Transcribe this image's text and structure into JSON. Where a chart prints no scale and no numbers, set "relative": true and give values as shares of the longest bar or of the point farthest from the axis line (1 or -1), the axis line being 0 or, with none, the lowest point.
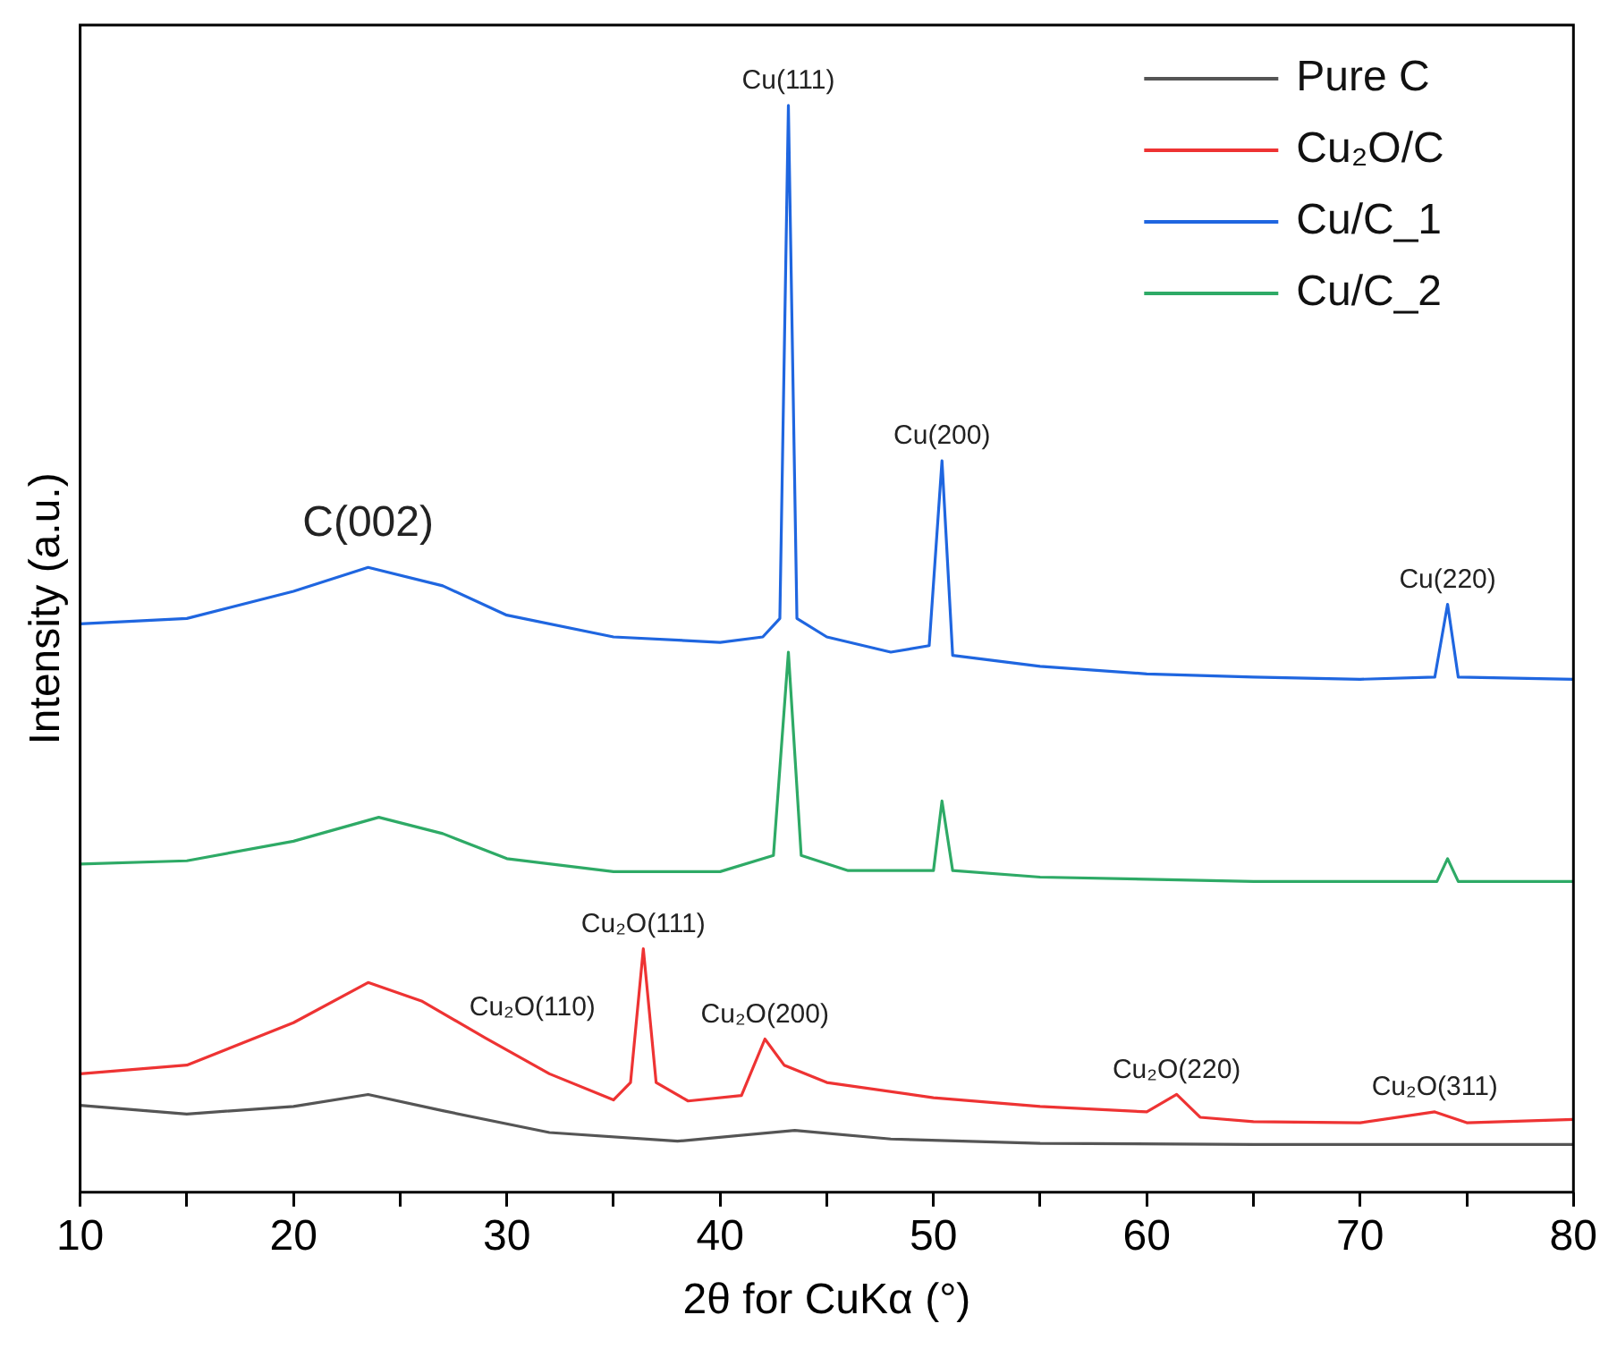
{
  "chart_data": {
    "type": "line",
    "relative": true,
    "xlabel": "2θ for CuKα (°)",
    "ylabel": "Intensity (a.u.)",
    "xlim": [
      10,
      80
    ],
    "xticks": [
      10,
      {
        "value": 15,
        "label": null
      },
      20,
      {
        "value": 25,
        "label": null
      },
      30,
      {
        "value": 35,
        "label": null
      },
      40,
      {
        "value": 45,
        "label": null
      },
      50,
      {
        "value": 55,
        "label": null
      },
      60,
      {
        "value": 65,
        "label": null
      },
      70,
      {
        "value": 75,
        "label": null
      },
      80
    ],
    "grid": false,
    "legend": "top right",
    "marker": "none",
    "line_style": "solid",
    "series": [
      {
        "name": "Pure C",
        "color": "#555555",
        "x": [
          10,
          15,
          20,
          23.5,
          27,
          32,
          38,
          43.5,
          48,
          55,
          65,
          80
        ],
        "values": [
          0.08,
          0.072,
          0.079,
          0.09,
          0.075,
          0.055,
          0.047,
          0.057,
          0.049,
          0.045,
          0.044,
          0.044
        ]
      },
      {
        "name": "Cu₂O/C",
        "color": "#ee3333",
        "x": [
          10,
          15,
          20,
          23.5,
          26,
          29,
          32,
          35,
          35.8,
          36.4,
          37,
          38.5,
          41,
          42.1,
          43,
          45,
          50,
          55,
          60,
          61.4,
          62.5,
          65,
          70,
          73.5,
          75,
          80
        ],
        "values": [
          0.109,
          0.117,
          0.156,
          0.193,
          0.176,
          0.142,
          0.109,
          0.085,
          0.101,
          0.224,
          0.101,
          0.084,
          0.089,
          0.141,
          0.117,
          0.101,
          0.087,
          0.079,
          0.074,
          0.09,
          0.069,
          0.065,
          0.064,
          0.074,
          0.064,
          0.067
        ]
      },
      {
        "name": "Cu/C_1",
        "color": "#1f66e0",
        "x": [
          10,
          15,
          20,
          23.5,
          27,
          30,
          35,
          40,
          42,
          42.8,
          43.2,
          43.6,
          45,
          48,
          49.8,
          50.4,
          50.9,
          55,
          60,
          65,
          70,
          73.5,
          74.1,
          74.6,
          80
        ],
        "values": [
          0.523,
          0.528,
          0.553,
          0.575,
          0.558,
          0.531,
          0.511,
          0.506,
          0.511,
          0.528,
          1,
          0.528,
          0.511,
          0.497,
          0.503,
          0.673,
          0.494,
          0.484,
          0.477,
          0.474,
          0.472,
          0.474,
          0.541,
          0.474,
          0.472
        ]
      },
      {
        "name": "Cu/C_2",
        "color": "#2eaa66",
        "x": [
          10,
          15,
          20,
          24,
          27,
          30,
          35,
          40,
          42.5,
          43.2,
          43.8,
          46,
          50,
          50.4,
          50.9,
          55,
          60,
          65,
          70,
          73.6,
          74.1,
          74.6,
          80
        ],
        "values": [
          0.302,
          0.305,
          0.323,
          0.345,
          0.33,
          0.307,
          0.295,
          0.295,
          0.31,
          0.497,
          0.31,
          0.296,
          0.296,
          0.36,
          0.296,
          0.29,
          0.288,
          0.286,
          0.286,
          0.286,
          0.307,
          0.286,
          0.286
        ]
      }
    ],
    "annotations": [
      {
        "text": "C(002)",
        "x": 23.5,
        "y": 0.575
      },
      {
        "text": "Cu(111)",
        "x": 43.2,
        "y": 1
      },
      {
        "text": "Cu(200)",
        "x": 50.4,
        "y": 0.673
      },
      {
        "text": "Cu(220)",
        "x": 74.1,
        "y": 0.541
      },
      {
        "text": "Cu₂O(111)",
        "x": 36.4,
        "y": 0.224
      },
      {
        "text": "Cu₂O(110)",
        "x": 31.2,
        "y": 0.118
      },
      {
        "text": "Cu₂O(200)",
        "x": 42.1,
        "y": 0.141
      },
      {
        "text": "Cu₂O(220)",
        "x": 61.4,
        "y": 0.09
      },
      {
        "text": "Cu₂O(311)",
        "x": 73.5,
        "y": 0.074
      }
    ]
  }
}
